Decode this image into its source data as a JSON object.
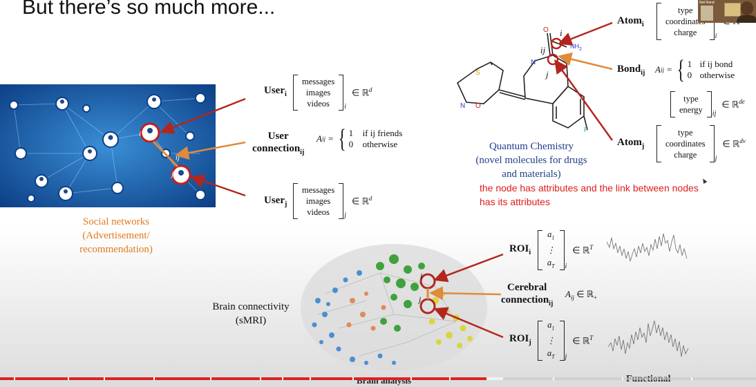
{
  "slide": {
    "title": "But there’s so much more...",
    "note": [
      "the node has attributes and the link between nodes",
      "has its attributes"
    ]
  },
  "social": {
    "caption": [
      "Social networks",
      "(Advertisement/",
      "recommendation)"
    ],
    "user_i": {
      "label": "User",
      "sub": "i",
      "rows": [
        "messages",
        "images",
        "videos"
      ],
      "space": "∈ ℝ",
      "dim": "d",
      "idx": "i"
    },
    "connection": {
      "label1": "User",
      "label2": "connection",
      "sub": "ij",
      "lhs": "A",
      "lhs_sub": "ij",
      "eq": "=",
      "case1_val": "1",
      "case1": "if ij friends",
      "case2_val": "0",
      "case2": "otherwise"
    },
    "user_j": {
      "label": "User",
      "sub": "j",
      "rows": [
        "messages",
        "images",
        "videos"
      ],
      "space": "∈ ℝ",
      "dim": "d",
      "idx": "j"
    },
    "node_labels": {
      "i": "i",
      "ij": "ij",
      "j": "j"
    }
  },
  "chemistry": {
    "caption": [
      "Quantum Chemistry",
      "(novel molecules for drugs",
      "and materials)"
    ],
    "atom_i": {
      "label": "Atom",
      "sub": "i",
      "rows": [
        "type",
        "coordinates",
        "charge"
      ],
      "space": "∈ ℝ",
      "idx": "i"
    },
    "bond": {
      "label": "Bond",
      "sub": "ij",
      "lhs": "A",
      "lhs_sub": "ij",
      "eq": "=",
      "case1_val": "1",
      "case1": "if ij bond",
      "case2_val": "0",
      "case2": "otherwise"
    },
    "bond_attr": {
      "rows": [
        "type",
        "energy"
      ],
      "space": "∈ ℝ",
      "dim": "de",
      "idx": "ij"
    },
    "atom_j": {
      "label": "Atom",
      "sub": "j",
      "rows": [
        "type",
        "coordinates",
        "charge"
      ],
      "space": "∈ ℝ",
      "dim": "dv",
      "idx": "j"
    },
    "mol_labels": {
      "i": "i",
      "ij": "ij",
      "j": "j",
      "N": "N",
      "S": "S",
      "NO": "N",
      "O": "O",
      "F": "F",
      "NH2": "NH",
      "NH2_sub": "2",
      "O_top": "O"
    }
  },
  "brain": {
    "caption": [
      "Brain connectivity",
      "(sMRI)"
    ],
    "bottom_label": "Brain analysis",
    "functional": "Functional",
    "roi_i": {
      "label": "ROI",
      "sub": "i",
      "rows": [
        "a",
        "⋮",
        "a"
      ],
      "row_subs": [
        "1",
        "",
        "T"
      ],
      "space": "∈ ℝ",
      "dim": "T",
      "idx": "i"
    },
    "cerebral": {
      "label1": "Cerebral",
      "label2": "connection",
      "sub": "ij",
      "formula": "A",
      "formula_sub": "ij",
      "formula_rest": "∈ ℝ",
      "formula_plus": "+"
    },
    "roi_j": {
      "label": "ROI",
      "sub": "j",
      "rows": [
        "a",
        "⋮",
        "a"
      ],
      "row_subs": [
        "1",
        "",
        "T"
      ],
      "space": "∈ ℝ",
      "dim": "T",
      "idx": "j"
    },
    "labels": {
      "i": "i",
      "j": "j"
    }
  },
  "colors": {
    "arrow_red": "#b3261e",
    "arrow_orange": "#e08a3c",
    "progress_red": "#e02020",
    "caption_orange": "#e07b1e",
    "caption_blue": "#1f3e8a"
  },
  "webcam": {
    "label": "Neil Band",
    "icon": "person-icon"
  }
}
